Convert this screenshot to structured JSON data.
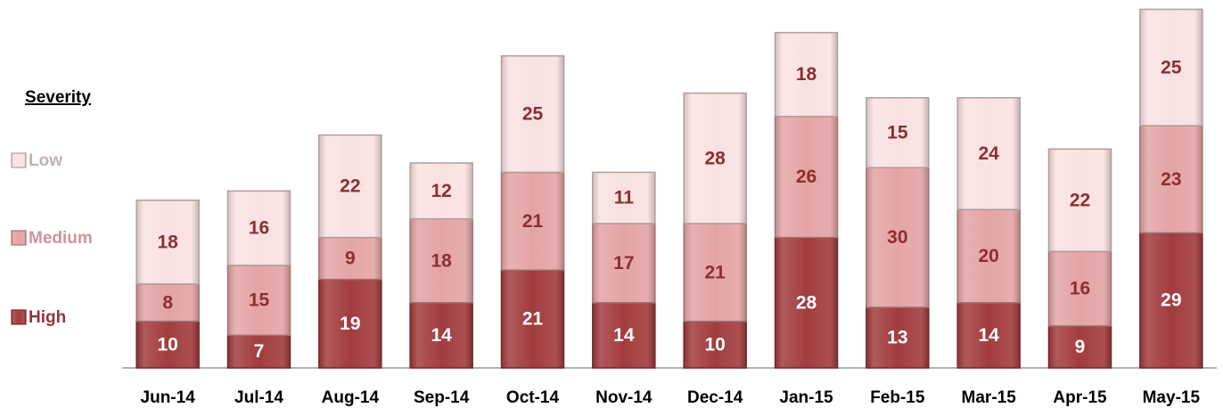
{
  "chart_data": {
    "type": "stacked_bar",
    "legend_title": "Severity",
    "categories": [
      "Jun-14",
      "Jul-14",
      "Aug-14",
      "Sep-14",
      "Oct-14",
      "Nov-14",
      "Dec-14",
      "Jan-15",
      "Feb-15",
      "Mar-15",
      "Apr-15",
      "May-15"
    ],
    "series": [
      {
        "name": "High",
        "color": "#a23c3e",
        "values": [
          10,
          7,
          19,
          14,
          21,
          14,
          10,
          28,
          13,
          14,
          9,
          29
        ]
      },
      {
        "name": "Medium",
        "color": "#e4a4a5",
        "values": [
          8,
          15,
          9,
          18,
          21,
          17,
          21,
          26,
          30,
          20,
          16,
          23
        ]
      },
      {
        "name": "Low",
        "color": "#f9e1e1",
        "values": [
          18,
          16,
          22,
          12,
          25,
          11,
          28,
          18,
          15,
          24,
          22,
          25
        ]
      }
    ],
    "ylim": [
      0,
      79
    ],
    "legend": "left"
  }
}
